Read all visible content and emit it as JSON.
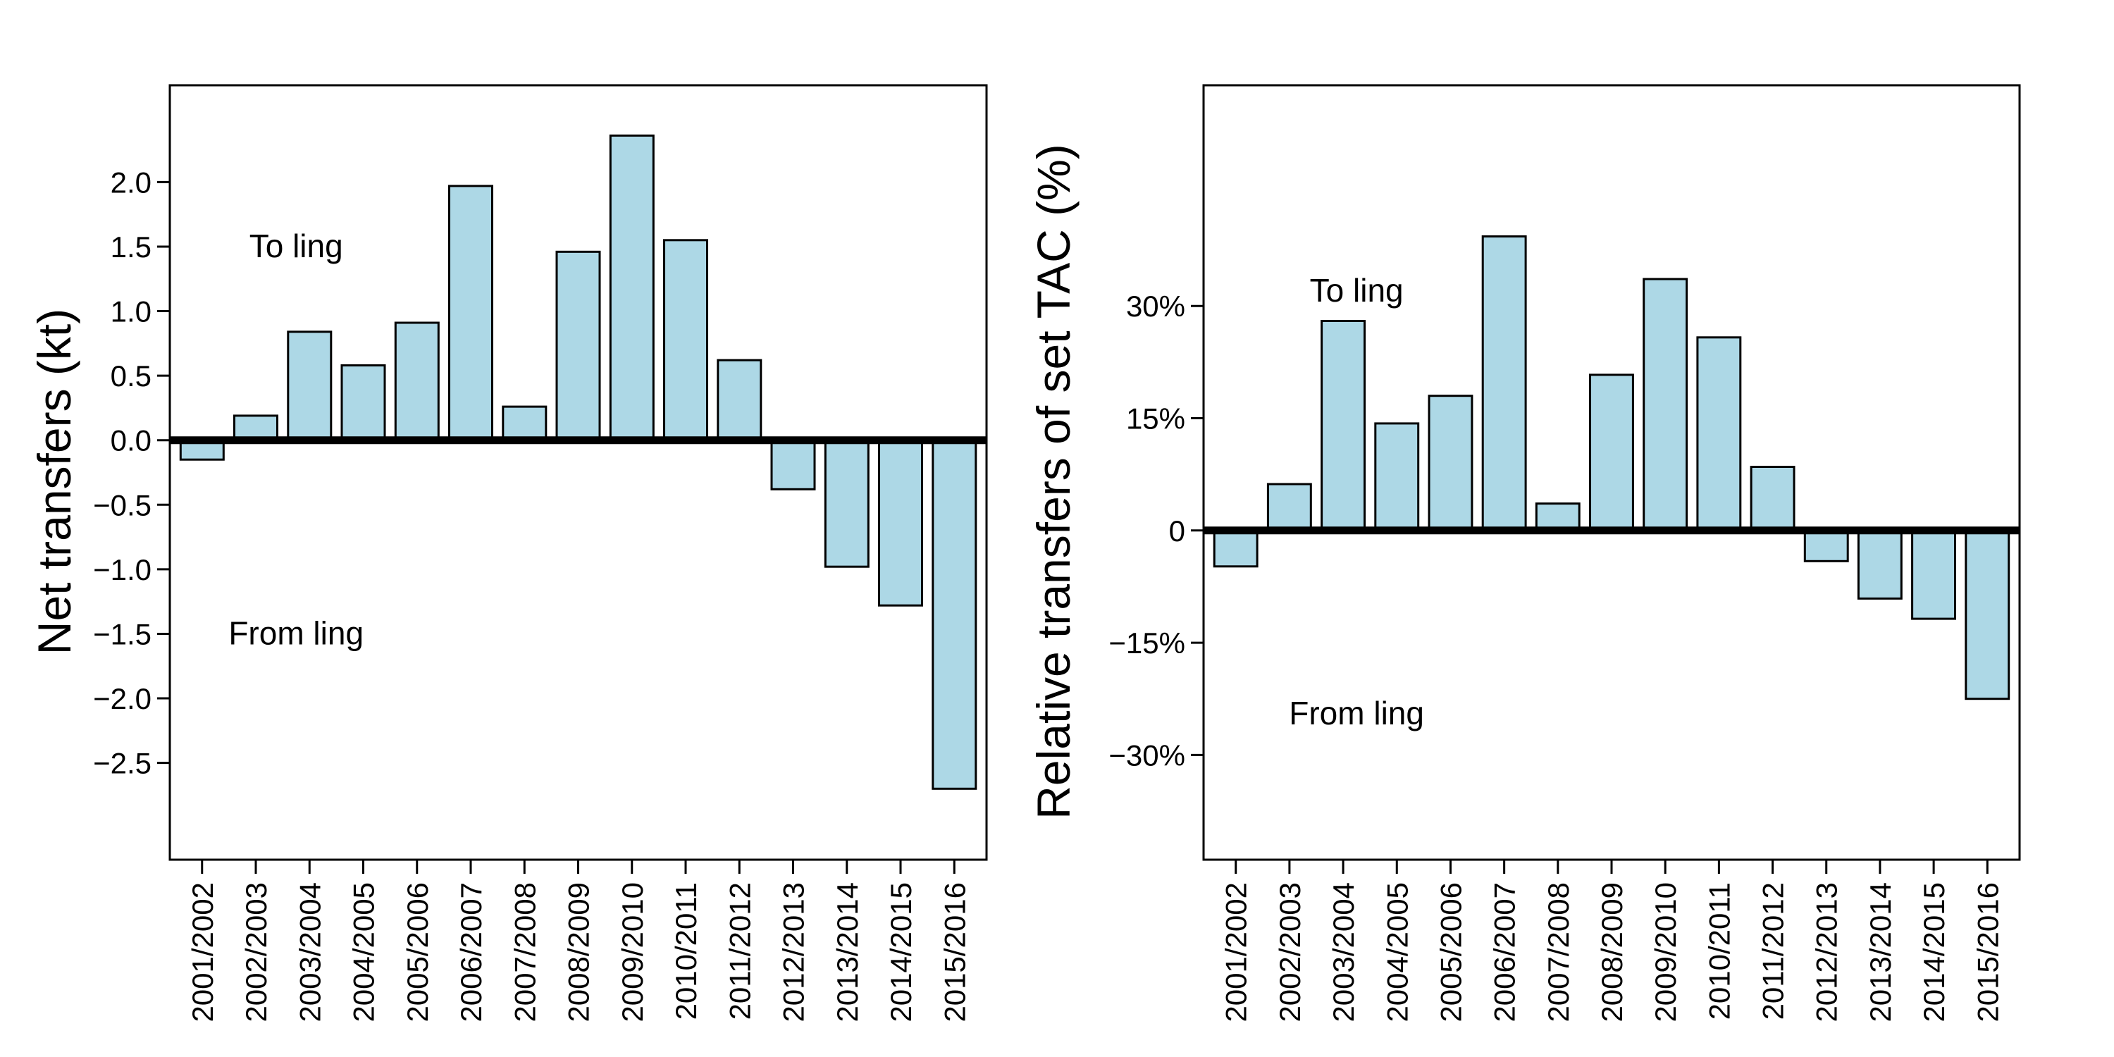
{
  "colors": {
    "bar_fill": "#add8e6",
    "bar_stroke": "#000000",
    "zero_line": "#000000",
    "axis": "#000000",
    "background": "#ffffff"
  },
  "chart_data": [
    {
      "type": "bar",
      "title": "",
      "xlabel": "",
      "ylabel": "Net transfers (kt)",
      "categories": [
        "2001/2002",
        "2002/2003",
        "2003/2004",
        "2004/2005",
        "2005/2006",
        "2006/2007",
        "2007/2008",
        "2008/2009",
        "2009/2010",
        "2010/2011",
        "2011/2012",
        "2012/2013",
        "2013/2014",
        "2014/2015",
        "2015/2016"
      ],
      "values": [
        -0.15,
        0.19,
        0.84,
        0.58,
        0.91,
        1.97,
        0.26,
        1.46,
        2.36,
        1.55,
        0.62,
        -0.38,
        -0.98,
        -1.28,
        -2.7
      ],
      "ylim": [
        -3.25,
        2.75
      ],
      "yticks": [
        2.0,
        1.5,
        1.0,
        0.5,
        0.0,
        -0.5,
        -1.0,
        -1.5,
        -2.0,
        -2.5
      ],
      "ytick_labels": [
        "2.0",
        "1.5",
        "1.0",
        "0.5",
        "0.0",
        "−0.5",
        "−1.0",
        "−1.5",
        "−2.0",
        "−2.5"
      ],
      "annotations": [
        {
          "text": "To ling",
          "x": 1.75,
          "y": 1.5
        },
        {
          "text": "From ling",
          "x": 1.75,
          "y": -1.5
        }
      ],
      "grid": false,
      "legend": "none"
    },
    {
      "type": "bar",
      "title": "",
      "xlabel": "",
      "ylabel": "Relative transfers of set TAC (%)",
      "categories": [
        "2001/2002",
        "2002/2003",
        "2003/2004",
        "2004/2005",
        "2005/2006",
        "2006/2007",
        "2007/2008",
        "2008/2009",
        "2009/2010",
        "2010/2011",
        "2011/2012",
        "2012/2013",
        "2013/2014",
        "2014/2015",
        "2015/2016"
      ],
      "values": [
        -4.8,
        6.2,
        28,
        14.3,
        18,
        39.3,
        3.6,
        20.8,
        33.6,
        25.8,
        8.5,
        -4.1,
        -9.1,
        -11.8,
        -22.5
      ],
      "ylim": [
        -44,
        59.5
      ],
      "yticks": [
        30,
        15,
        0,
        -15,
        -30
      ],
      "ytick_labels": [
        "30%",
        "15%",
        "0",
        "−15%",
        "−30%"
      ],
      "annotations": [
        {
          "text": "To ling",
          "x": 2.25,
          "y": 32
        },
        {
          "text": "From ling",
          "x": 2.25,
          "y": -24.5
        }
      ],
      "grid": false,
      "legend": "none"
    }
  ]
}
